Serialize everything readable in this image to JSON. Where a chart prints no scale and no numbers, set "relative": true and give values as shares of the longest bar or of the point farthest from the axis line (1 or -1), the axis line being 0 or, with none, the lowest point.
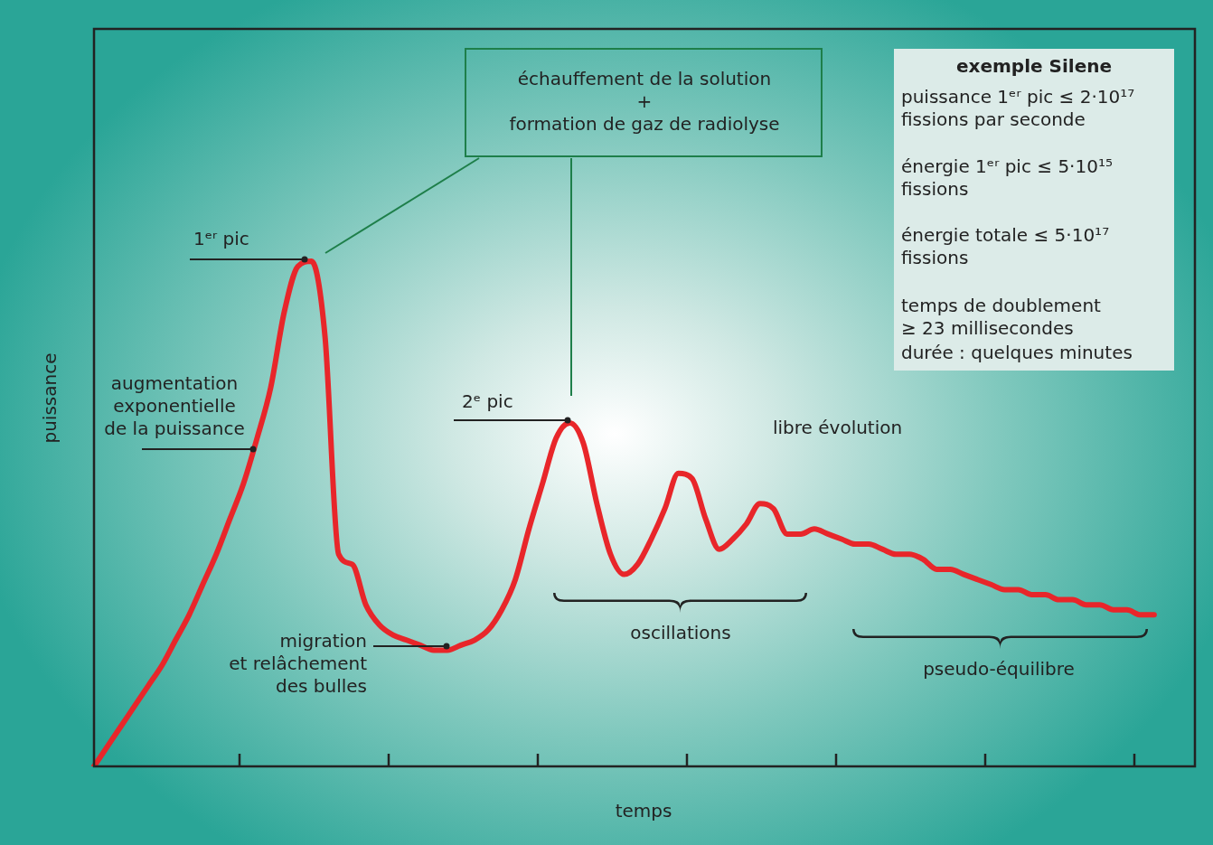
{
  "chart_data": {
    "type": "line",
    "relative": true,
    "xlabel": "temps",
    "ylabel": "puissance",
    "categories": [
      null,
      null,
      null,
      null,
      null,
      null,
      null,
      null,
      null,
      null,
      null,
      null,
      null,
      null,
      null,
      null,
      null,
      null,
      null,
      null,
      null,
      null,
      null,
      null,
      null,
      null,
      null,
      null,
      null,
      null,
      null,
      null,
      null,
      null,
      null,
      null,
      null,
      null,
      null,
      null,
      null,
      null,
      null,
      null,
      null,
      null,
      null,
      null,
      null,
      null,
      null,
      null,
      null,
      null,
      null,
      null,
      null,
      null,
      null,
      null,
      null,
      null,
      null,
      null,
      null,
      null,
      null,
      null,
      null,
      null,
      null,
      null,
      null,
      null,
      null,
      null,
      null,
      null,
      null,
      null,
      null,
      null
    ],
    "series": [
      {
        "color": "#e8262a",
        "values": [
          0,
          0.04,
          0.08,
          0.12,
          0.16,
          0.2,
          0.25,
          0.3,
          0.36,
          0.42,
          0.49,
          0.56,
          0.65,
          0.75,
          0.9,
          0.99,
          1,
          0.85,
          0.42,
          0.4,
          0.32,
          0.28,
          0.26,
          0.25,
          0.24,
          0.23,
          0.23,
          0.24,
          0.25,
          0.27,
          0.31,
          0.37,
          0.47,
          0.56,
          0.65,
          0.68,
          0.64,
          0.52,
          0.42,
          0.38,
          0.4,
          0.45,
          0.51,
          0.58,
          0.57,
          0.49,
          0.43,
          0.45,
          0.48,
          0.52,
          0.51,
          0.46,
          0.46,
          0.47,
          0.46,
          0.45,
          0.44,
          0.44,
          0.43,
          0.42,
          0.42,
          0.41,
          0.39,
          0.39,
          0.38,
          0.37,
          0.36,
          0.35,
          0.35,
          0.34,
          0.34,
          0.33,
          0.33,
          0.32,
          0.32,
          0.31,
          0.31,
          0.3,
          0.3,
          null,
          null,
          null
        ]
      }
    ],
    "annotations": [
      "1ᵉʳ pic",
      "2ᵉ pic",
      "augmentation\nexponentielle\nde la puissance",
      "migration\net relâchement\ndes bulles",
      "échauffement de la solution\n+\nformation de gaz de radiolyse",
      "libre évolution",
      "oscillations",
      "pseudo-équilibre",
      "exemple Silene",
      "puissance 1ᵉʳ pic ≤ 2·10¹⁷\nfissions par seconde",
      "énergie 1ᵉʳ pic ≤ 5·10¹⁵\nfissions",
      "énergie totale ≤ 5·10¹⁷\nfissions",
      "temps de doublement\n≥ 23 millisecondes",
      "durée : quelques minutes"
    ]
  }
}
